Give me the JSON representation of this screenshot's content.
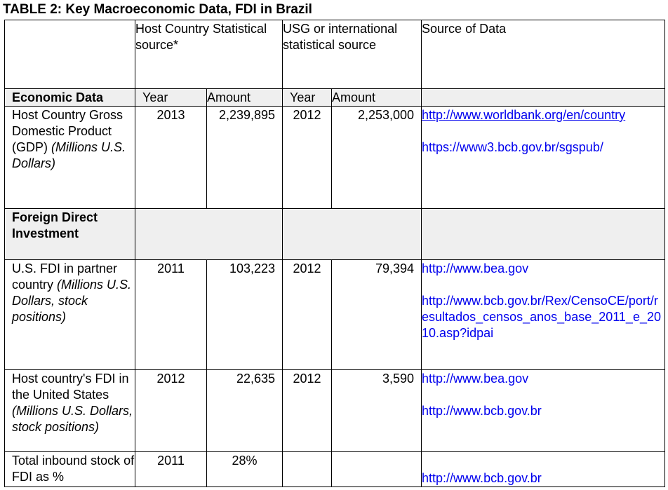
{
  "title": "TABLE 2: Key Macroeconomic Data, FDI in Brazil",
  "header": {
    "host_source": "Host Country Statistical source*",
    "usg_source": "USG or international statistical source",
    "source_of_data": "Source of Data"
  },
  "subheader": {
    "section": "Economic Data",
    "year": "Year",
    "amount": "Amount"
  },
  "rows": [
    {
      "label": "Host Country Gross Domestic Product (GDP)",
      "label_italic": "(Millions U.S. Dollars)",
      "host_year": "2013",
      "host_amount": "2,239,895",
      "usg_year": "2012",
      "usg_amount": "2,253,000",
      "sources": [
        "http://www.worldbank.org/en/country",
        "https://www3.bcb.gov.br/sgspub/"
      ]
    },
    {
      "label": "U.S. FDI in partner country",
      "label_italic": "(Millions U.S. Dollars, stock positions)",
      "host_year": "2011",
      "host_amount": "103,223",
      "usg_year": "2012",
      "usg_amount": "79,394",
      "sources": [
        "http://www.bea.gov",
        "http://www.bcb.gov.br/Rex/CensoCE/port/resultados_censos_anos_base_2011_e_2010.asp?idpai"
      ]
    },
    {
      "label": "Host country's FDI in the United States",
      "label_italic_open": "(Millions U.S. Dollars, stock positions)",
      "host_year": "2012",
      "host_amount": "22,635",
      "usg_year": "2012",
      "usg_amount": "3,590",
      "sources": [
        "http://www.bea.gov",
        "http://www.bcb.gov.br"
      ]
    },
    {
      "label": "Total inbound stock of FDI as %",
      "host_year": "2011",
      "host_amount": "28%",
      "usg_year": "",
      "usg_amount": "",
      "sources": [
        "http://www.bcb.gov.br"
      ]
    }
  ],
  "section_fdi": "Foreign Direct Investment"
}
